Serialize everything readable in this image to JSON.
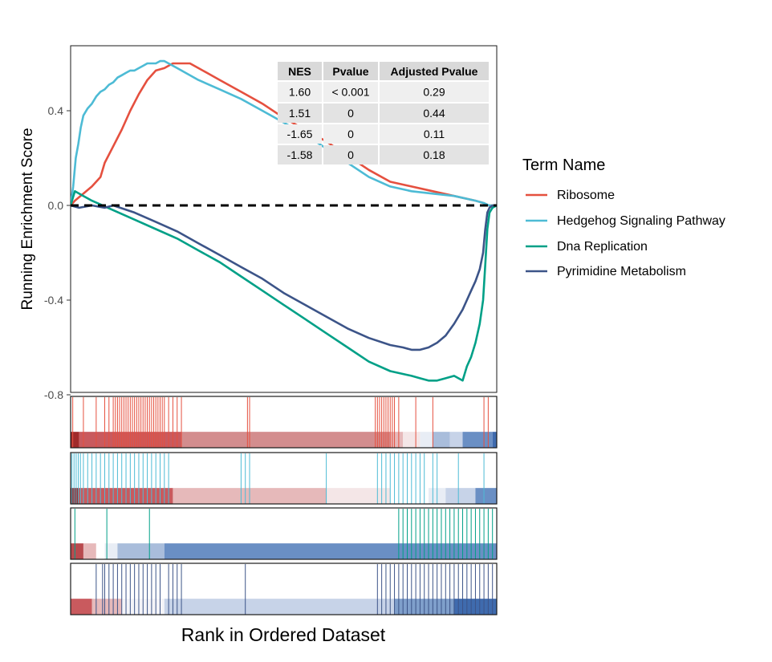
{
  "chart_data": {
    "type": "line",
    "xlabel": "Rank in Ordered Dataset",
    "ylabel": "Running Enrichment Score",
    "ylim": [
      -0.82,
      0.66
    ],
    "y_ticks": [
      0.4,
      0.0,
      -0.4,
      -0.8
    ],
    "y_tick_labels": [
      "0.4",
      "0.0",
      "-0.4",
      "-0.8"
    ],
    "x_range": [
      0,
      100
    ],
    "reference_line": 0,
    "legend": {
      "title": "Term Name",
      "placement": "right"
    },
    "series": [
      {
        "name": "Ribosome",
        "color": "#E5503F",
        "x": [
          0,
          1,
          3,
          5,
          7,
          8,
          10,
          12,
          14,
          16,
          18,
          20,
          22,
          24,
          26,
          28,
          30,
          32,
          35,
          40,
          45,
          50,
          55,
          60,
          65,
          70,
          75,
          80,
          85,
          90,
          95,
          97,
          98,
          100
        ],
        "y": [
          0.0,
          0.02,
          0.05,
          0.08,
          0.12,
          0.18,
          0.25,
          0.32,
          0.4,
          0.47,
          0.53,
          0.57,
          0.58,
          0.6,
          0.6,
          0.6,
          0.58,
          0.56,
          0.53,
          0.48,
          0.43,
          0.37,
          0.32,
          0.27,
          0.21,
          0.15,
          0.1,
          0.08,
          0.06,
          0.04,
          0.02,
          0.01,
          0.0,
          0.0
        ]
      },
      {
        "name": "Hedgehog Signaling Pathway",
        "color": "#4DBBD5",
        "x": [
          0,
          0.6,
          1.2,
          1.8,
          2.4,
          3,
          4,
          5,
          6,
          7,
          8,
          9,
          10,
          11,
          12,
          13,
          14,
          15,
          16,
          17,
          18,
          19,
          20,
          21,
          22,
          25,
          30,
          35,
          40,
          45,
          50,
          55,
          60,
          65,
          70,
          75,
          80,
          85,
          90,
          95,
          97,
          98.2,
          99,
          100
        ],
        "y": [
          0.0,
          0.08,
          0.2,
          0.26,
          0.33,
          0.38,
          0.41,
          0.43,
          0.46,
          0.48,
          0.49,
          0.51,
          0.52,
          0.54,
          0.55,
          0.56,
          0.57,
          0.57,
          0.58,
          0.59,
          0.6,
          0.6,
          0.6,
          0.61,
          0.61,
          0.58,
          0.53,
          0.49,
          0.45,
          0.4,
          0.35,
          0.3,
          0.24,
          0.18,
          0.12,
          0.08,
          0.06,
          0.05,
          0.04,
          0.02,
          0.01,
          0.0,
          0.0,
          0.0
        ]
      },
      {
        "name": "Dna Replication",
        "color": "#00A087",
        "x": [
          0,
          1,
          3,
          5,
          10,
          15,
          20,
          25,
          30,
          35,
          40,
          45,
          50,
          55,
          60,
          65,
          70,
          75,
          80,
          82,
          84,
          86,
          88,
          90,
          92,
          93,
          94,
          95,
          96,
          96.8,
          97.3,
          97.8,
          98.3,
          99,
          100
        ],
        "y": [
          0.0,
          0.06,
          0.04,
          0.02,
          -0.02,
          -0.06,
          -0.1,
          -0.14,
          -0.19,
          -0.24,
          -0.3,
          -0.36,
          -0.42,
          -0.48,
          -0.54,
          -0.6,
          -0.66,
          -0.7,
          -0.72,
          -0.73,
          -0.74,
          -0.74,
          -0.73,
          -0.72,
          -0.74,
          -0.68,
          -0.64,
          -0.58,
          -0.5,
          -0.4,
          -0.25,
          -0.1,
          -0.03,
          -0.01,
          0.0
        ]
      },
      {
        "name": "Pyrimidine Metabolism",
        "color": "#3C5488",
        "x": [
          0,
          2,
          5,
          8,
          10,
          15,
          20,
          25,
          30,
          35,
          40,
          45,
          50,
          55,
          60,
          65,
          70,
          75,
          78,
          80,
          82,
          84,
          86,
          88,
          90,
          92,
          93,
          94,
          95,
          96,
          96.8,
          97.3,
          97.8,
          98.3,
          99,
          100
        ],
        "y": [
          0.0,
          -0.01,
          0.0,
          -0.01,
          0.0,
          -0.03,
          -0.07,
          -0.11,
          -0.16,
          -0.21,
          -0.26,
          -0.31,
          -0.37,
          -0.42,
          -0.47,
          -0.52,
          -0.56,
          -0.59,
          -0.6,
          -0.61,
          -0.61,
          -0.6,
          -0.58,
          -0.55,
          -0.5,
          -0.44,
          -0.4,
          -0.36,
          -0.32,
          -0.27,
          -0.2,
          -0.1,
          -0.03,
          -0.01,
          0.0,
          0.0
        ]
      }
    ],
    "stats_table": {
      "headers": [
        "NES",
        "Pvalue",
        "Adjusted Pvalue"
      ],
      "rows": [
        [
          "1.60",
          "< 0.001",
          "0.29"
        ],
        [
          "1.51",
          "0",
          "0.44"
        ],
        [
          "-1.65",
          "0",
          "0.11"
        ],
        [
          "-1.58",
          "0",
          "0.18"
        ]
      ]
    },
    "hit_tracks": [
      {
        "name": "Ribosome",
        "color": "#E5503F",
        "hits": [
          0.5,
          3,
          6,
          8,
          9,
          10,
          10.5,
          11,
          11.5,
          12,
          12.5,
          13,
          13.5,
          14,
          14.5,
          15,
          15.5,
          16,
          16.5,
          17,
          17.5,
          18,
          18.5,
          19,
          19.5,
          20,
          20.5,
          21,
          21.5,
          22,
          23,
          24,
          25,
          26,
          41.5,
          42,
          71.5,
          72,
          72.5,
          73,
          73.5,
          74,
          74.5,
          75,
          75.5,
          76,
          77,
          81,
          85,
          97,
          98
        ],
        "heat": [
          {
            "from": 0,
            "to": 2,
            "color": "#A02A2A"
          },
          {
            "from": 2,
            "to": 26,
            "color": "#C95A5E"
          },
          {
            "from": 26,
            "to": 75,
            "color": "#D38D8E"
          },
          {
            "from": 75,
            "to": 78,
            "color": "#E6B9BA"
          },
          {
            "from": 78,
            "to": 82,
            "color": "#F4E6E7"
          },
          {
            "from": 82,
            "to": 85,
            "color": "#E8EDF5"
          },
          {
            "from": 85,
            "to": 89,
            "color": "#A9BDDB"
          },
          {
            "from": 89,
            "to": 92,
            "color": "#C7D3E8"
          },
          {
            "from": 92,
            "to": 99,
            "color": "#6A8FC4"
          },
          {
            "from": 99,
            "to": 100,
            "color": "#3F6BAE"
          }
        ]
      },
      {
        "name": "Hedgehog Signaling Pathway",
        "color": "#4DBBD5",
        "hits": [
          0.3,
          0.8,
          1.3,
          1.8,
          2.3,
          3,
          4,
          5,
          6,
          7,
          8,
          9,
          10,
          11,
          12,
          13,
          14,
          15,
          16,
          17,
          18,
          19,
          20,
          21,
          22,
          23,
          40,
          41,
          42,
          60,
          72,
          73,
          74,
          75,
          76,
          77,
          78,
          79,
          80,
          81,
          82,
          83,
          85,
          86,
          91,
          97
        ],
        "heat": [
          {
            "from": 0,
            "to": 2,
            "color": "#A02A2A"
          },
          {
            "from": 2,
            "to": 24,
            "color": "#C95A5E"
          },
          {
            "from": 24,
            "to": 60,
            "color": "#E6B9BA"
          },
          {
            "from": 60,
            "to": 75,
            "color": "#F4E6E7"
          },
          {
            "from": 75,
            "to": 84,
            "color": "#FFFFFF"
          },
          {
            "from": 84,
            "to": 88,
            "color": "#E8EDF5"
          },
          {
            "from": 88,
            "to": 95,
            "color": "#C7D3E8"
          },
          {
            "from": 95,
            "to": 100,
            "color": "#6A8FC4"
          }
        ]
      },
      {
        "name": "Dna Replication",
        "color": "#00A087",
        "hits": [
          1,
          8.5,
          18.5,
          77,
          78,
          79,
          80,
          81,
          82,
          83,
          84,
          85,
          86,
          87,
          88,
          89,
          90,
          91,
          92,
          93,
          94,
          95,
          96,
          97,
          98,
          99
        ],
        "heat": [
          {
            "from": 0,
            "to": 3,
            "color": "#B84A4E"
          },
          {
            "from": 3,
            "to": 6,
            "color": "#E6B9BA"
          },
          {
            "from": 6,
            "to": 8,
            "color": "#FFFFFF"
          },
          {
            "from": 8,
            "to": 11,
            "color": "#E8EDF5"
          },
          {
            "from": 11,
            "to": 22,
            "color": "#A9BDDB"
          },
          {
            "from": 22,
            "to": 100,
            "color": "#6A8FC4"
          }
        ]
      },
      {
        "name": "Pyrimidine Metabolism",
        "color": "#3C5488",
        "hits": [
          6,
          7.5,
          8,
          9,
          10,
          11,
          12,
          13,
          14,
          15,
          16,
          17,
          18,
          19,
          20,
          21,
          23,
          24,
          25,
          26,
          41,
          72,
          73,
          74,
          75,
          76,
          77,
          78,
          79,
          80,
          81,
          82,
          83,
          84,
          85,
          86,
          87,
          88,
          89,
          90,
          91,
          92,
          93,
          94,
          95,
          96,
          97,
          98,
          99
        ],
        "heat": [
          {
            "from": 0,
            "to": 5,
            "color": "#C95A5E"
          },
          {
            "from": 5,
            "to": 12,
            "color": "#E6B9BA"
          },
          {
            "from": 12,
            "to": 22,
            "color": "#F4F4F8"
          },
          {
            "from": 22,
            "to": 76,
            "color": "#C7D3E8"
          },
          {
            "from": 76,
            "to": 90,
            "color": "#7F9FCB"
          },
          {
            "from": 90,
            "to": 100,
            "color": "#3F6BAE"
          }
        ]
      }
    ]
  }
}
